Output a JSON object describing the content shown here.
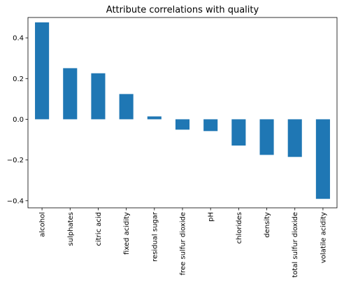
{
  "chart_data": {
    "type": "bar",
    "title": "Attribute correlations with quality",
    "xlabel": "",
    "ylabel": "",
    "categories": [
      "alcohol",
      "sulphates",
      "citric acid",
      "fixed acidity",
      "residual sugar",
      "free sulfur dioxide",
      "pH",
      "chlorides",
      "density",
      "total sulfur dioxide",
      "volatile acidity"
    ],
    "values": [
      0.476,
      0.251,
      0.226,
      0.124,
      0.014,
      -0.051,
      -0.058,
      -0.129,
      -0.175,
      -0.185,
      -0.391
    ],
    "ylim": [
      -0.435,
      0.5
    ],
    "yticks": [
      "0.4",
      "0.2",
      "0.0",
      "−0.2",
      "−0.4"
    ],
    "ytick_values": [
      0.4,
      0.2,
      0.0,
      -0.2,
      -0.4
    ],
    "grid": false,
    "bar_color": "#1f77b4"
  }
}
